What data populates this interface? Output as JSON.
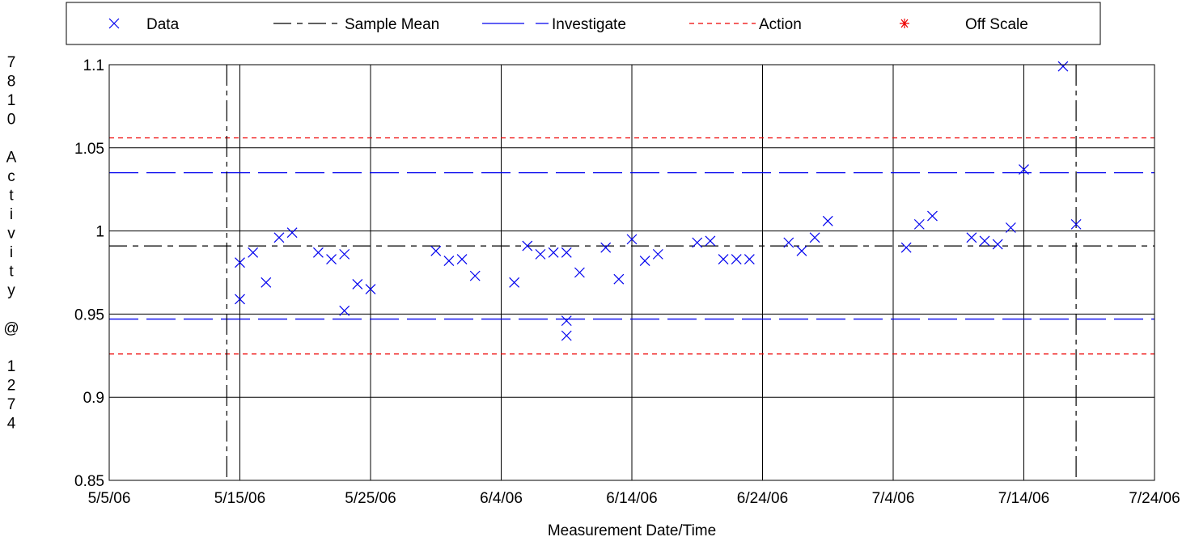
{
  "chart_data": {
    "type": "scatter",
    "title": "",
    "xlabel": "Measurement  Date/Time",
    "ylabel": "7810 Activity @ 1274",
    "ylim": [
      0.85,
      1.1
    ],
    "xlim": [
      "2006-05-05",
      "2006-07-24"
    ],
    "x_ticks": [
      "5/5/06",
      "5/15/06",
      "5/25/06",
      "6/4/06",
      "6/14/06",
      "6/24/06",
      "7/4/06",
      "7/14/06",
      "7/24/06"
    ],
    "y_ticks": [
      "0.85",
      "0.9",
      "0.95",
      "1",
      "1.05",
      "1.1"
    ],
    "grid": true,
    "legend_position": "top",
    "legend": [
      {
        "label": "Data",
        "marker": "x",
        "color": "#0000ee"
      },
      {
        "label": "Sample  Mean",
        "style": "dash-dot",
        "color": "#000000"
      },
      {
        "label": "Investigate",
        "style": "long-dash",
        "color": "#0000ee"
      },
      {
        "label": "Action",
        "style": "short-dash",
        "color": "#ee0000"
      },
      {
        "label": "Off Scale",
        "marker": "asterisk",
        "color": "#ee0000"
      }
    ],
    "reference_lines": {
      "sample_mean": 0.991,
      "investigate": [
        0.947,
        1.035
      ],
      "action": [
        0.926,
        1.056
      ]
    },
    "period_bounds": [
      "2006-05-14",
      "2006-07-18"
    ],
    "series": [
      {
        "name": "Data",
        "points": [
          [
            "2006-05-15",
            0.981
          ],
          [
            "2006-05-15",
            0.959
          ],
          [
            "2006-05-16",
            0.987
          ],
          [
            "2006-05-17",
            0.969
          ],
          [
            "2006-05-18",
            0.996
          ],
          [
            "2006-05-19",
            0.999
          ],
          [
            "2006-05-21",
            0.987
          ],
          [
            "2006-05-22",
            0.983
          ],
          [
            "2006-05-23",
            0.952
          ],
          [
            "2006-05-23",
            0.986
          ],
          [
            "2006-05-24",
            0.968
          ],
          [
            "2006-05-25",
            0.965
          ],
          [
            "2006-05-30",
            0.988
          ],
          [
            "2006-05-31",
            0.982
          ],
          [
            "2006-06-01",
            0.983
          ],
          [
            "2006-06-02",
            0.973
          ],
          [
            "2006-06-05",
            0.969
          ],
          [
            "2006-06-06",
            0.991
          ],
          [
            "2006-06-07",
            0.986
          ],
          [
            "2006-06-08",
            0.987
          ],
          [
            "2006-06-09",
            0.987
          ],
          [
            "2006-06-09",
            0.946
          ],
          [
            "2006-06-09",
            0.937
          ],
          [
            "2006-06-10",
            0.975
          ],
          [
            "2006-06-12",
            0.99
          ],
          [
            "2006-06-13",
            0.971
          ],
          [
            "2006-06-14",
            0.995
          ],
          [
            "2006-06-15",
            0.982
          ],
          [
            "2006-06-16",
            0.986
          ],
          [
            "2006-06-19",
            0.993
          ],
          [
            "2006-06-20",
            0.994
          ],
          [
            "2006-06-21",
            0.983
          ],
          [
            "2006-06-22",
            0.983
          ],
          [
            "2006-06-23",
            0.983
          ],
          [
            "2006-06-26",
            0.993
          ],
          [
            "2006-06-27",
            0.988
          ],
          [
            "2006-06-28",
            0.996
          ],
          [
            "2006-06-29",
            1.006
          ],
          [
            "2006-07-05",
            0.99
          ],
          [
            "2006-07-06",
            1.004
          ],
          [
            "2006-07-07",
            1.009
          ],
          [
            "2006-07-10",
            0.996
          ],
          [
            "2006-07-11",
            0.994
          ],
          [
            "2006-07-12",
            0.992
          ],
          [
            "2006-07-13",
            1.002
          ],
          [
            "2006-07-14",
            1.037
          ],
          [
            "2006-07-17",
            1.099
          ],
          [
            "2006-07-18",
            1.004
          ]
        ]
      }
    ]
  }
}
